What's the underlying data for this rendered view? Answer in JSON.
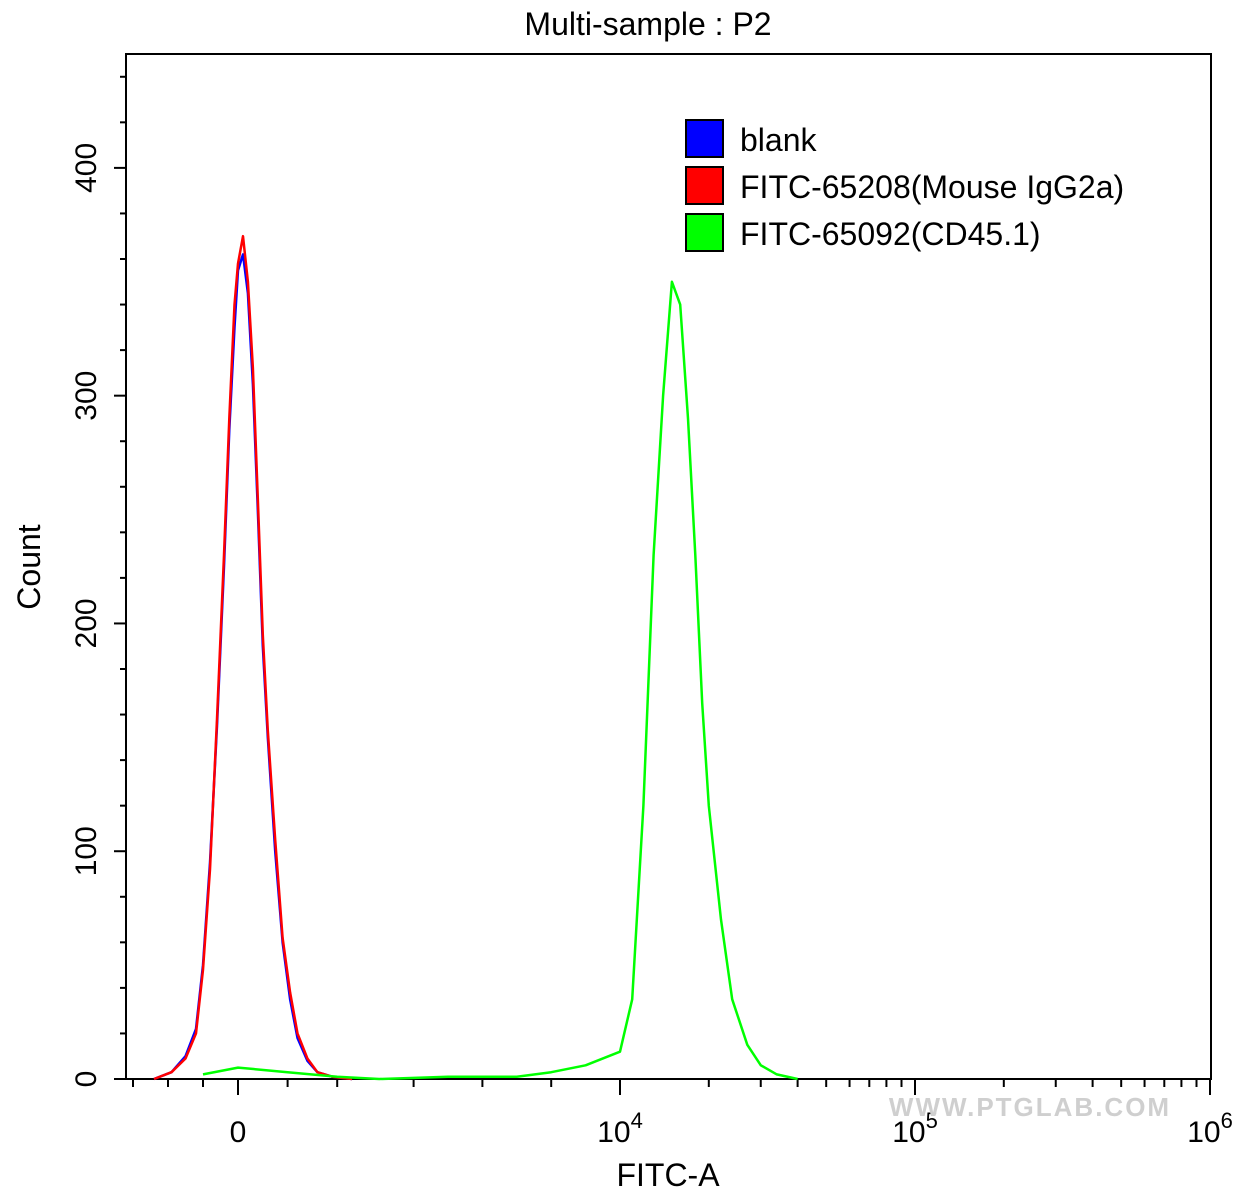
{
  "chart_data": {
    "type": "line",
    "title": "Multi-sample : P2",
    "xlabel": "FITC-A",
    "ylabel": "Count",
    "x_scale": "biexponential",
    "xlim": [
      -3200,
      1000000
    ],
    "ylim": [
      0,
      450
    ],
    "y_ticks": [
      0,
      100,
      200,
      300,
      400
    ],
    "x_ticks": [
      {
        "value": 0,
        "base": "0",
        "exp": ""
      },
      {
        "value": 10000,
        "base": "10",
        "exp": "4"
      },
      {
        "value": 100000,
        "base": "10",
        "exp": "5"
      },
      {
        "value": 1000000,
        "base": "10",
        "exp": "6"
      }
    ],
    "grid": false,
    "legend_position": "top-right",
    "series": [
      {
        "name": "blank",
        "color": "#0000ff",
        "x": [
          -2400,
          -1900,
          -1500,
          -1200,
          -1000,
          -800,
          -600,
          -400,
          -250,
          -100,
          0,
          100,
          200,
          300,
          400,
          500,
          600,
          750,
          900,
          1050,
          1200,
          1400,
          1600,
          1900,
          2300
        ],
        "y": [
          0,
          3,
          10,
          22,
          50,
          95,
          155,
          225,
          285,
          330,
          355,
          362,
          345,
          305,
          250,
          190,
          150,
          100,
          60,
          35,
          18,
          8,
          3,
          1,
          0
        ]
      },
      {
        "name": "FITC-65208(Mouse IgG2a)",
        "color": "#ff0000",
        "x": [
          -2400,
          -1900,
          -1500,
          -1200,
          -1000,
          -800,
          -600,
          -400,
          -250,
          -100,
          0,
          100,
          200,
          300,
          400,
          500,
          600,
          750,
          900,
          1050,
          1200,
          1400,
          1600,
          1900,
          2300
        ],
        "y": [
          0,
          3,
          9,
          20,
          48,
          92,
          158,
          230,
          290,
          340,
          358,
          370,
          350,
          312,
          255,
          195,
          153,
          105,
          62,
          38,
          20,
          9,
          3,
          1,
          0
        ]
      },
      {
        "name": "FITC-65092(CD45.1)",
        "color": "#00ff00",
        "x": [
          -1000,
          0,
          1000,
          2000,
          3000,
          5000,
          7000,
          8000,
          9000,
          10000,
          11000,
          12000,
          13000,
          14000,
          15000,
          16000,
          17000,
          18000,
          19000,
          20000,
          22000,
          24000,
          27000,
          30000,
          34000,
          40000
        ],
        "y": [
          2,
          5,
          3,
          1,
          0,
          1,
          1,
          3,
          6,
          12,
          35,
          120,
          230,
          300,
          350,
          340,
          290,
          230,
          165,
          120,
          70,
          35,
          15,
          6,
          2,
          0
        ]
      }
    ]
  },
  "watermark": "WWW.PTGLAB.COM"
}
